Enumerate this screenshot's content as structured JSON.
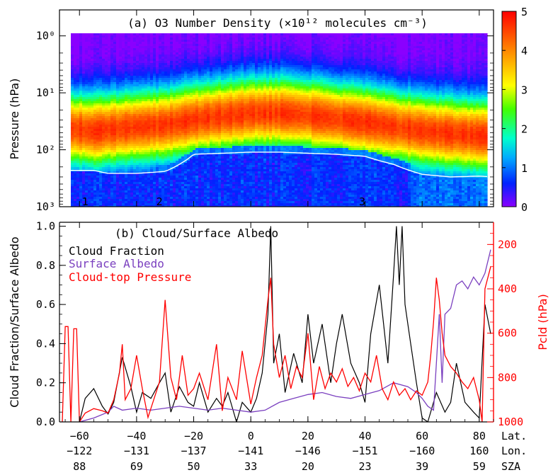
{
  "chart_data": [
    {
      "type": "heatmap",
      "title": "(a) O3 Number Density (×10¹² molecules cm⁻³)",
      "ylabel": "Pressure (hPa)",
      "yscale": "log",
      "ylim": [
        1000,
        0.35
      ],
      "yticks": [
        {
          "value": 1,
          "label": "10⁰"
        },
        {
          "value": 10,
          "label": "10¹"
        },
        {
          "value": 100,
          "label": "10²"
        },
        {
          "value": 1000,
          "label": "10³"
        }
      ],
      "colorbar": {
        "range": [
          0,
          5
        ],
        "ticks": [
          "0",
          "1",
          "2",
          "3",
          "4",
          "5"
        ],
        "colors": [
          "#8a00ff",
          "#0033ff",
          "#00ccff",
          "#00ff80",
          "#ffff00",
          "#ff8000",
          "#ff0000"
        ]
      },
      "xlim": [
        -67,
        85
      ],
      "x_profile": [
        -67,
        -55,
        -50,
        -40,
        -30,
        -20,
        -10,
        0,
        10,
        20,
        30,
        40,
        50,
        60,
        70,
        80,
        85
      ],
      "ozone_peak_pressure": [
        40,
        45,
        42,
        38,
        35,
        28,
        25,
        22,
        22,
        24,
        28,
        32,
        38,
        45,
        50,
        55,
        55
      ],
      "tropopause_pressure": [
        230,
        230,
        260,
        260,
        240,
        120,
        115,
        110,
        110,
        115,
        120,
        130,
        180,
        270,
        300,
        290,
        300
      ],
      "region_markers": [
        {
          "label": "1",
          "x": -58
        },
        {
          "label": "2",
          "x": -32
        },
        {
          "label": "3",
          "x": 39
        }
      ]
    },
    {
      "type": "line",
      "title": "(b) Cloud/Surface Albedo",
      "ylabel": "Cloud Fraction/Surface Albedo",
      "ylabel_right": "Pcld (hPa)",
      "ylim": [
        0,
        1.02
      ],
      "yticks": [
        "0.0",
        "0.2",
        "0.4",
        "0.6",
        "0.8",
        "1.0"
      ],
      "ylim_right": [
        1000,
        100
      ],
      "yticks_right": [
        "200",
        "400",
        "600",
        "800",
        "1000"
      ],
      "xlim": [
        -67,
        85
      ],
      "legend_position": "top-left",
      "series": [
        {
          "name": "Cloud Fraction",
          "color": "#000000",
          "x": [
            -60,
            -58,
            -55,
            -52,
            -50,
            -48,
            -45,
            -42,
            -40,
            -38,
            -35,
            -32,
            -30,
            -28,
            -25,
            -22,
            -20,
            -18,
            -15,
            -12,
            -10,
            -8,
            -5,
            -3,
            0,
            2,
            4,
            6,
            7,
            8,
            10,
            12,
            15,
            18,
            20,
            22,
            25,
            28,
            30,
            32,
            35,
            38,
            40,
            42,
            45,
            48,
            50,
            51,
            52,
            53,
            54,
            56,
            58,
            60,
            62,
            65,
            68,
            70,
            72,
            75,
            78,
            80,
            82,
            84
          ],
          "values": [
            0.0,
            0.12,
            0.17,
            0.08,
            0.04,
            0.1,
            0.33,
            0.18,
            0.05,
            0.15,
            0.12,
            0.2,
            0.25,
            0.05,
            0.18,
            0.1,
            0.08,
            0.2,
            0.05,
            0.12,
            0.08,
            0.15,
            0.0,
            0.1,
            0.05,
            0.12,
            0.25,
            0.55,
            1.0,
            0.3,
            0.45,
            0.15,
            0.35,
            0.2,
            0.55,
            0.3,
            0.5,
            0.2,
            0.4,
            0.55,
            0.3,
            0.2,
            0.1,
            0.45,
            0.7,
            0.3,
            0.75,
            1.0,
            0.7,
            1.0,
            0.6,
            0.4,
            0.2,
            0.02,
            0.0,
            0.15,
            0.05,
            0.1,
            0.3,
            0.1,
            0.05,
            0.02,
            0.6,
            0.45
          ]
        },
        {
          "name": "Surface Albedo",
          "color": "#7a3fbf",
          "x": [
            -60,
            -55,
            -50,
            -48,
            -45,
            -40,
            -35,
            -30,
            -25,
            -20,
            -15,
            -10,
            -5,
            0,
            5,
            10,
            15,
            20,
            25,
            30,
            35,
            40,
            45,
            50,
            55,
            58,
            60,
            62,
            64,
            65,
            66,
            67,
            68,
            70,
            72,
            74,
            76,
            78,
            80,
            82,
            84
          ],
          "values": [
            0.0,
            0.02,
            0.05,
            0.08,
            0.06,
            0.07,
            0.06,
            0.07,
            0.08,
            0.07,
            0.06,
            0.07,
            0.06,
            0.05,
            0.06,
            0.1,
            0.12,
            0.14,
            0.15,
            0.13,
            0.12,
            0.14,
            0.16,
            0.2,
            0.18,
            0.15,
            0.12,
            0.08,
            0.06,
            0.3,
            0.55,
            0.2,
            0.55,
            0.58,
            0.7,
            0.72,
            0.68,
            0.74,
            0.7,
            0.76,
            0.88
          ]
        },
        {
          "name": "Cloud-top Pressure",
          "color": "#ff0000",
          "axis": "right",
          "x": [
            -66,
            -65,
            -64,
            -63,
            -62,
            -61,
            -60,
            -58,
            -55,
            -52,
            -50,
            -48,
            -46,
            -45,
            -44,
            -42,
            -40,
            -38,
            -36,
            -34,
            -32,
            -30,
            -28,
            -26,
            -24,
            -22,
            -20,
            -18,
            -15,
            -12,
            -10,
            -8,
            -5,
            -3,
            0,
            2,
            4,
            6,
            7,
            8,
            10,
            12,
            14,
            16,
            18,
            20,
            22,
            24,
            26,
            28,
            30,
            32,
            34,
            36,
            38,
            40,
            42,
            44,
            46,
            48,
            50,
            52,
            54,
            56,
            58,
            60,
            62,
            63,
            64,
            65,
            66,
            67,
            68,
            70,
            72,
            74,
            76,
            78,
            80,
            81,
            82,
            84
          ],
          "values": [
            1000,
            570,
            570,
            1000,
            580,
            580,
            1000,
            960,
            940,
            950,
            960,
            900,
            780,
            650,
            900,
            850,
            700,
            850,
            980,
            900,
            820,
            450,
            800,
            900,
            700,
            880,
            850,
            780,
            900,
            650,
            950,
            800,
            900,
            680,
            920,
            800,
            700,
            450,
            350,
            650,
            800,
            700,
            850,
            750,
            800,
            600,
            900,
            750,
            850,
            780,
            820,
            760,
            840,
            800,
            860,
            780,
            820,
            700,
            850,
            900,
            820,
            880,
            850,
            900,
            860,
            880,
            820,
            700,
            550,
            350,
            450,
            600,
            700,
            750,
            780,
            820,
            850,
            800,
            900,
            1000,
            400,
            300
          ]
        }
      ]
    }
  ],
  "xaxis": {
    "rows": [
      {
        "label": "Lat.",
        "ticks": [
          "−60",
          "−40",
          "−20",
          "0",
          "20",
          "40",
          "60",
          "80"
        ]
      },
      {
        "label": "Lon.",
        "ticks": [
          "−122",
          "−131",
          "−137",
          "−141",
          "−146",
          "−151",
          "−160",
          "160"
        ]
      },
      {
        "label": "SZA",
        "ticks": [
          "88",
          "69",
          "50",
          "33",
          "20",
          "23",
          "39",
          "59"
        ]
      }
    ],
    "tick_lat": [
      -60,
      -40,
      -20,
      0,
      20,
      40,
      60,
      80
    ]
  }
}
